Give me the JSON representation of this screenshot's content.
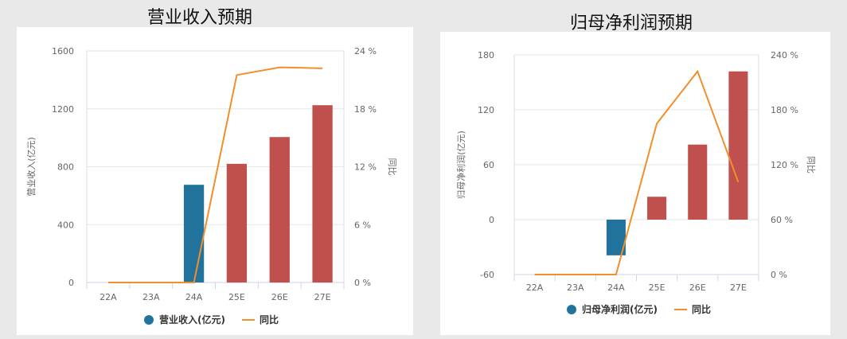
{
  "panels": [
    {
      "title": "营业收入预期",
      "legend": {
        "bar": "营业收入(亿元)",
        "line": "同比"
      },
      "y_left_label": "营业收入(亿元)",
      "y_right_label": "同比"
    },
    {
      "title": "归母净利润预期",
      "legend": {
        "bar": "归母净利润(亿元)",
        "line": "同比"
      },
      "y_left_label": "归母净利润(亿元)",
      "y_right_label": "同比"
    }
  ],
  "colors": {
    "actual": "#21729c",
    "forecast": "#c0504d",
    "line": "#f28e2b",
    "axis_text": "#666666"
  },
  "chart_data": [
    {
      "type": "bar+line",
      "title": "营业收入预期",
      "categories": [
        "22A",
        "23A",
        "24A",
        "25E",
        "26E",
        "27E"
      ],
      "series": [
        {
          "name": "营业收入(亿元)",
          "type": "bar",
          "axis": "left",
          "values": [
            null,
            null,
            675,
            820,
            1005,
            1225
          ]
        },
        {
          "name": "同比",
          "type": "line",
          "axis": "right",
          "values": [
            0,
            0,
            0,
            21.5,
            22.3,
            22.2
          ]
        }
      ],
      "ylabel": "营业收入(亿元)",
      "y2label": "同比",
      "ylim": [
        0,
        1600
      ],
      "yticks": [
        0,
        400,
        800,
        1200,
        1600
      ],
      "ytick_labels": [
        "0",
        "400",
        "800",
        "1200",
        "1600"
      ],
      "y2lim": [
        0,
        24
      ],
      "y2ticks": [
        0,
        6,
        12,
        18,
        24
      ],
      "y2tick_labels": [
        "0 %",
        "6 %",
        "12 %",
        "18 %",
        "24 %"
      ],
      "bar_colors": [
        "#21729c",
        "#21729c",
        "#21729c",
        "#c0504d",
        "#c0504d",
        "#c0504d"
      ],
      "legend_position": "bottom"
    },
    {
      "type": "bar+line",
      "title": "归母净利润预期",
      "categories": [
        "22A",
        "23A",
        "24A",
        "25E",
        "26E",
        "27E"
      ],
      "series": [
        {
          "name": "归母净利润(亿元)",
          "type": "bar",
          "axis": "left",
          "values": [
            null,
            null,
            -39,
            25,
            82,
            162
          ]
        },
        {
          "name": "同比",
          "type": "line",
          "axis": "right",
          "values": [
            0,
            0,
            0,
            165,
            222,
            101
          ]
        }
      ],
      "ylabel": "归母净利润(亿元)",
      "y2label": "同比",
      "ylim": [
        -60,
        180
      ],
      "yticks": [
        -60,
        0,
        60,
        120,
        180
      ],
      "ytick_labels": [
        "-60",
        "0",
        "60",
        "120",
        "180"
      ],
      "y2lim": [
        0,
        240
      ],
      "y2ticks": [
        0,
        60,
        120,
        180,
        240
      ],
      "y2tick_labels": [
        "0 %",
        "60 %",
        "120 %",
        "180 %",
        "240 %"
      ],
      "bar_colors": [
        "#21729c",
        "#21729c",
        "#21729c",
        "#c0504d",
        "#c0504d",
        "#c0504d"
      ],
      "legend_position": "bottom"
    }
  ]
}
